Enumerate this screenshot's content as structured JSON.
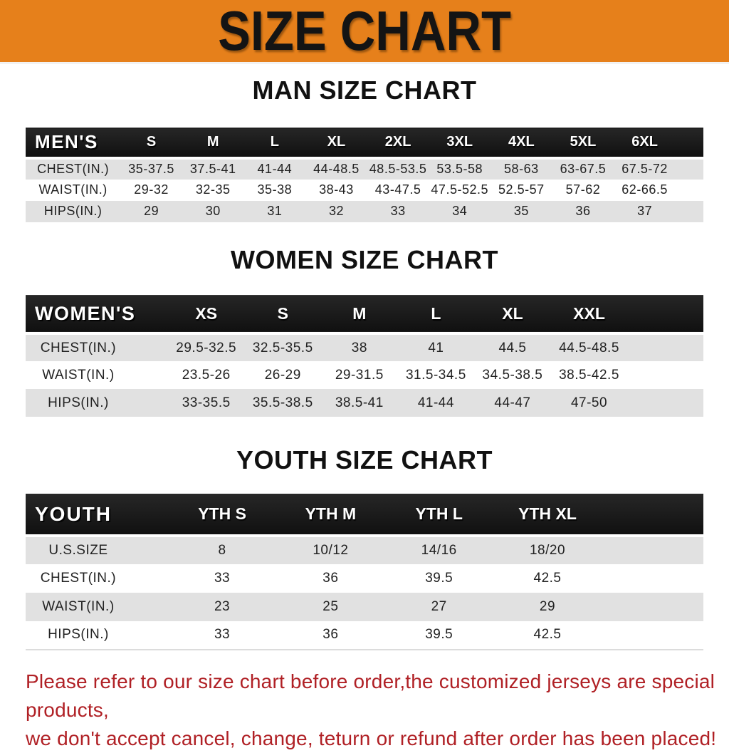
{
  "banner": {
    "title": "SIZE CHART",
    "bg_color": "#e6801b",
    "text_color": "#141414"
  },
  "colors": {
    "header_bar": "#181818",
    "row_gray": "#e1e1e1",
    "row_white": "#ffffff",
    "disclaimer_red": "#b02025"
  },
  "men": {
    "heading": "MAN SIZE CHART",
    "table_label": "MEN'S",
    "sizes": [
      "S",
      "M",
      "L",
      "XL",
      "2XL",
      "3XL",
      "4XL",
      "5XL",
      "6XL"
    ],
    "rows": [
      {
        "label": "CHEST(IN.)",
        "values": [
          "35-37.5",
          "37.5-41",
          "41-44",
          "44-48.5",
          "48.5-53.5",
          "53.5-58",
          "58-63",
          "63-67.5",
          "67.5-72"
        ]
      },
      {
        "label": "WAIST(IN.)",
        "values": [
          "29-32",
          "32-35",
          "35-38",
          "38-43",
          "43-47.5",
          "47.5-52.5",
          "52.5-57",
          "57-62",
          "62-66.5"
        ]
      },
      {
        "label": "HIPS(IN.)",
        "values": [
          "29",
          "30",
          "31",
          "32",
          "33",
          "34",
          "35",
          "36",
          "37"
        ]
      }
    ]
  },
  "women": {
    "heading": "WOMEN SIZE CHART",
    "table_label": "WOMEN'S",
    "sizes": [
      "XS",
      "S",
      "M",
      "L",
      "XL",
      "XXL"
    ],
    "rows": [
      {
        "label": "CHEST(IN.)",
        "values": [
          "29.5-32.5",
          "32.5-35.5",
          "38",
          "41",
          "44.5",
          "44.5-48.5"
        ]
      },
      {
        "label": "WAIST(IN.)",
        "values": [
          "23.5-26",
          "26-29",
          "29-31.5",
          "31.5-34.5",
          "34.5-38.5",
          "38.5-42.5"
        ]
      },
      {
        "label": "HIPS(IN.)",
        "values": [
          "33-35.5",
          "35.5-38.5",
          "38.5-41",
          "41-44",
          "44-47",
          "47-50"
        ]
      }
    ]
  },
  "youth": {
    "heading": "YOUTH SIZE CHART",
    "table_label": "YOUTH",
    "sizes": [
      "YTH S",
      "YTH M",
      "YTH L",
      "YTH XL"
    ],
    "rows": [
      {
        "label": "U.S.SIZE",
        "values": [
          "8",
          "10/12",
          "14/16",
          "18/20"
        ]
      },
      {
        "label": "CHEST(IN.)",
        "values": [
          "33",
          "36",
          "39.5",
          "42.5"
        ]
      },
      {
        "label": "WAIST(IN.)",
        "values": [
          "23",
          "25",
          "27",
          "29"
        ]
      },
      {
        "label": "HIPS(IN.)",
        "values": [
          "33",
          "36",
          "39.5",
          "42.5"
        ]
      }
    ]
  },
  "disclaimer": {
    "line1": "Please refer to our size chart before order,the customized jerseys are special products,",
    "line2": "we don't accept cancel, change, teturn or refund after order has been placed!"
  }
}
